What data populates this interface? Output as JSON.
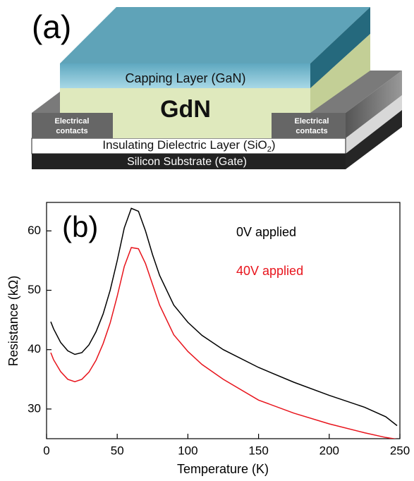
{
  "diagram": {
    "panel_label": "(a)",
    "capping_layer": "Capping Layer (GaN)",
    "active_layer": "GdN",
    "contacts": [
      [
        "Electrical",
        "contacts"
      ],
      [
        "Electrical",
        "contacts"
      ]
    ],
    "dielectric_layer": {
      "prefix": "Insulating Dielectric Layer (SiO",
      "subscript": "2",
      "suffix": ")"
    },
    "substrate": "Silicon Substrate (Gate)"
  },
  "chart_data": {
    "type": "line",
    "panel_label": "(b)",
    "xlabel": "Temperature (K)",
    "ylabel": "Resistance (kΩ)",
    "x": [
      3,
      5,
      10,
      15,
      20,
      25,
      30,
      35,
      40,
      45,
      50,
      55,
      60,
      65,
      70,
      75,
      80,
      90,
      100,
      110,
      125,
      150,
      175,
      200,
      225,
      240,
      248
    ],
    "series": [
      {
        "name": "0V applied",
        "color": "#000000",
        "values": [
          44.7,
          43.5,
          41.2,
          39.8,
          39.2,
          39.5,
          40.8,
          43,
          46,
          50,
          55,
          60.5,
          63.8,
          63.3,
          60,
          56,
          52.5,
          47.5,
          44.6,
          42.4,
          40,
          37,
          34.5,
          32.3,
          30.3,
          28.7,
          27.2
        ]
      },
      {
        "name": "40V applied",
        "color": "#e8141c",
        "values": [
          39.5,
          38.3,
          36.3,
          35,
          34.6,
          35,
          36.2,
          38.2,
          41,
          44.5,
          49,
          54,
          57.2,
          57,
          54.5,
          51,
          47.5,
          42.5,
          39.7,
          37.5,
          35,
          31.5,
          29.3,
          27.5,
          26,
          25.2,
          24.9
        ]
      }
    ],
    "xlim": [
      0,
      250
    ],
    "ylim": [
      25,
      64.8
    ],
    "xticks": [
      0,
      50,
      100,
      150,
      200,
      250
    ],
    "yticks": [
      30,
      40,
      50,
      60
    ]
  }
}
